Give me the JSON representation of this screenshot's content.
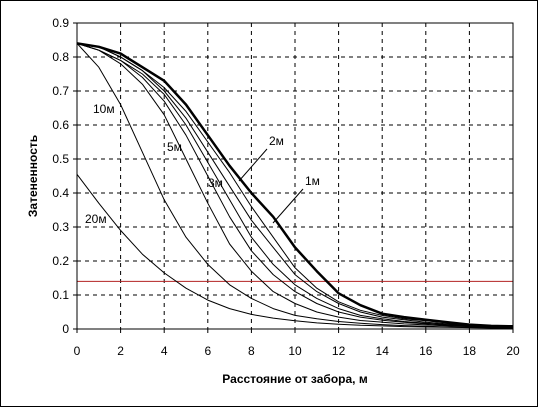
{
  "chart_data": {
    "type": "line",
    "xlabel": "Расстояние от забора, м",
    "ylabel": "Затененность",
    "xlim": [
      0,
      20
    ],
    "ylim": [
      0,
      0.9
    ],
    "x_ticks": [
      "0",
      "2",
      "4",
      "6",
      "8",
      "10",
      "12",
      "14",
      "16",
      "18",
      "20"
    ],
    "y_ticks": [
      "0",
      "0.1",
      "0.2",
      "0.3",
      "0.4",
      "0.5",
      "0.6",
      "0.7",
      "0.8",
      "0.9"
    ],
    "grid": "dashed",
    "reference_line": {
      "y": 0.14,
      "color": "#b22222"
    },
    "series": [
      {
        "name": "1м",
        "bold": true,
        "points": [
          [
            0,
            0.84
          ],
          [
            1,
            0.83
          ],
          [
            2,
            0.81
          ],
          [
            3,
            0.77
          ],
          [
            4,
            0.73
          ],
          [
            5,
            0.66
          ],
          [
            6,
            0.57
          ],
          [
            7,
            0.48
          ],
          [
            8,
            0.4
          ],
          [
            9,
            0.33
          ],
          [
            10,
            0.24
          ],
          [
            11,
            0.17
          ],
          [
            12,
            0.105
          ],
          [
            13,
            0.07
          ],
          [
            14,
            0.045
          ],
          [
            15,
            0.035
          ],
          [
            16,
            0.027
          ],
          [
            17,
            0.02
          ],
          [
            18,
            0.013
          ],
          [
            19,
            0.009
          ],
          [
            20,
            0.008
          ]
        ]
      },
      {
        "name": "2м",
        "bold": false,
        "points": [
          [
            0,
            0.84
          ],
          [
            1,
            0.83
          ],
          [
            2,
            0.8
          ],
          [
            3,
            0.76
          ],
          [
            4,
            0.71
          ],
          [
            5,
            0.64
          ],
          [
            6,
            0.55
          ],
          [
            7,
            0.46
          ],
          [
            8,
            0.36
          ],
          [
            9,
            0.27
          ],
          [
            10,
            0.18
          ],
          [
            11,
            0.12
          ],
          [
            12,
            0.08
          ],
          [
            13,
            0.055
          ],
          [
            14,
            0.04
          ],
          [
            15,
            0.03
          ],
          [
            16,
            0.024
          ],
          [
            17,
            0.018
          ],
          [
            18,
            0.012
          ],
          [
            19,
            0.008
          ],
          [
            20,
            0.007
          ]
        ]
      },
      {
        "name": "",
        "bold": false,
        "points": [
          [
            0,
            0.84
          ],
          [
            1,
            0.83
          ],
          [
            2,
            0.8
          ],
          [
            3,
            0.76
          ],
          [
            4,
            0.7
          ],
          [
            5,
            0.62
          ],
          [
            6,
            0.52
          ],
          [
            7,
            0.42
          ],
          [
            8,
            0.32
          ],
          [
            9,
            0.24
          ],
          [
            10,
            0.16
          ],
          [
            11,
            0.11
          ],
          [
            12,
            0.075
          ],
          [
            13,
            0.05
          ],
          [
            14,
            0.035
          ],
          [
            15,
            0.027
          ],
          [
            16,
            0.02
          ],
          [
            17,
            0.015
          ],
          [
            18,
            0.011
          ],
          [
            19,
            0.008
          ],
          [
            20,
            0.006
          ]
        ]
      },
      {
        "name": "3м",
        "bold": false,
        "points": [
          [
            0,
            0.84
          ],
          [
            1,
            0.82
          ],
          [
            2,
            0.79
          ],
          [
            3,
            0.75
          ],
          [
            4,
            0.69
          ],
          [
            5,
            0.6
          ],
          [
            6,
            0.49
          ],
          [
            7,
            0.38
          ],
          [
            8,
            0.27
          ],
          [
            9,
            0.19
          ],
          [
            10,
            0.13
          ],
          [
            11,
            0.09
          ],
          [
            12,
            0.06
          ],
          [
            13,
            0.04
          ],
          [
            14,
            0.03
          ],
          [
            15,
            0.022
          ],
          [
            16,
            0.017
          ],
          [
            17,
            0.013
          ],
          [
            18,
            0.01
          ],
          [
            19,
            0.007
          ],
          [
            20,
            0.006
          ]
        ]
      },
      {
        "name": "",
        "bold": false,
        "points": [
          [
            0,
            0.84
          ],
          [
            1,
            0.82
          ],
          [
            2,
            0.79
          ],
          [
            3,
            0.74
          ],
          [
            4,
            0.67
          ],
          [
            5,
            0.57
          ],
          [
            6,
            0.45
          ],
          [
            7,
            0.33
          ],
          [
            8,
            0.23
          ],
          [
            9,
            0.16
          ],
          [
            10,
            0.11
          ],
          [
            11,
            0.075
          ],
          [
            12,
            0.05
          ],
          [
            13,
            0.035
          ],
          [
            14,
            0.026
          ],
          [
            15,
            0.02
          ],
          [
            16,
            0.015
          ],
          [
            17,
            0.011
          ],
          [
            18,
            0.008
          ],
          [
            19,
            0.006
          ],
          [
            20,
            0.005
          ]
        ]
      },
      {
        "name": "5м",
        "bold": false,
        "points": [
          [
            0,
            0.84
          ],
          [
            1,
            0.82
          ],
          [
            2,
            0.78
          ],
          [
            3,
            0.72
          ],
          [
            4,
            0.63
          ],
          [
            5,
            0.5
          ],
          [
            6,
            0.37
          ],
          [
            7,
            0.25
          ],
          [
            8,
            0.17
          ],
          [
            9,
            0.11
          ],
          [
            10,
            0.075
          ],
          [
            11,
            0.05
          ],
          [
            12,
            0.035
          ],
          [
            13,
            0.025
          ],
          [
            14,
            0.02
          ],
          [
            15,
            0.015
          ],
          [
            16,
            0.012
          ],
          [
            17,
            0.009
          ],
          [
            18,
            0.007
          ],
          [
            19,
            0.005
          ],
          [
            20,
            0.004
          ]
        ]
      },
      {
        "name": "10м",
        "bold": false,
        "points": [
          [
            0,
            0.84
          ],
          [
            1,
            0.77
          ],
          [
            2,
            0.66
          ],
          [
            3,
            0.52
          ],
          [
            4,
            0.38
          ],
          [
            5,
            0.27
          ],
          [
            6,
            0.19
          ],
          [
            7,
            0.13
          ],
          [
            8,
            0.09
          ],
          [
            9,
            0.06
          ],
          [
            10,
            0.04
          ],
          [
            11,
            0.03
          ],
          [
            12,
            0.022
          ],
          [
            13,
            0.017
          ],
          [
            14,
            0.013
          ],
          [
            15,
            0.01
          ],
          [
            16,
            0.008
          ],
          [
            17,
            0.006
          ],
          [
            18,
            0.005
          ],
          [
            19,
            0.004
          ],
          [
            20,
            0.003
          ]
        ]
      },
      {
        "name": "20м",
        "bold": false,
        "points": [
          [
            0,
            0.455
          ],
          [
            1,
            0.37
          ],
          [
            2,
            0.29
          ],
          [
            3,
            0.22
          ],
          [
            4,
            0.165
          ],
          [
            5,
            0.12
          ],
          [
            6,
            0.085
          ],
          [
            7,
            0.06
          ],
          [
            8,
            0.043
          ],
          [
            9,
            0.032
          ],
          [
            10,
            0.024
          ],
          [
            11,
            0.018
          ],
          [
            12,
            0.014
          ],
          [
            13,
            0.011
          ],
          [
            14,
            0.009
          ],
          [
            15,
            0.007
          ],
          [
            16,
            0.006
          ],
          [
            17,
            0.005
          ],
          [
            18,
            0.004
          ],
          [
            19,
            0.003
          ],
          [
            20,
            0.003
          ]
        ]
      }
    ]
  }
}
